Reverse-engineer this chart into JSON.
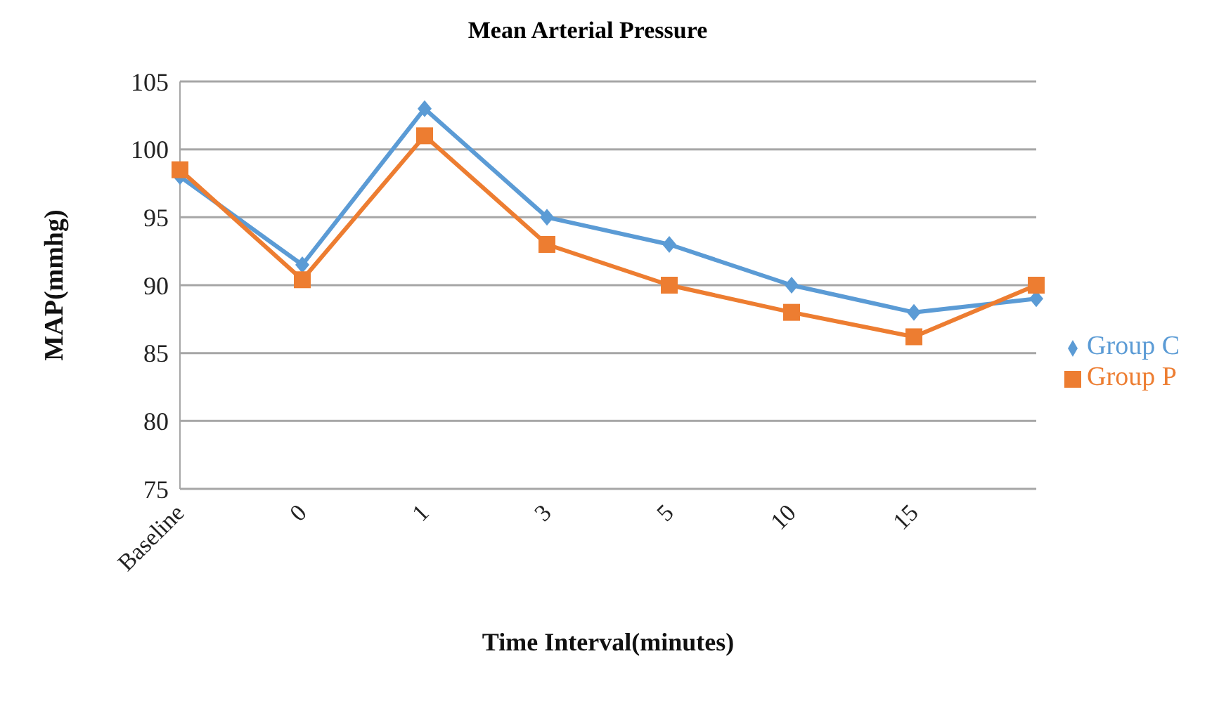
{
  "chart_data": {
    "type": "line",
    "title": "Mean Arterial Pressure",
    "xlabel": "Time Interval(minutes)",
    "ylabel": "MAP(mmhg)",
    "categories": [
      "Baseline",
      "0",
      "1",
      "3",
      "5",
      "10",
      "15",
      null
    ],
    "series": [
      {
        "name": "Group C",
        "color": "#5b9bd5",
        "marker": "diamond",
        "values": [
          98,
          91.5,
          103,
          95,
          93,
          90,
          88,
          89
        ]
      },
      {
        "name": "Group P",
        "color": "#ed7d31",
        "marker": "square",
        "values": [
          98.5,
          90.4,
          101,
          93,
          90,
          88,
          86.2,
          90
        ]
      }
    ],
    "ylim": [
      75,
      105
    ],
    "yticks": [
      75,
      80,
      85,
      90,
      95,
      100,
      105
    ],
    "grid": "y",
    "legend": "right"
  }
}
